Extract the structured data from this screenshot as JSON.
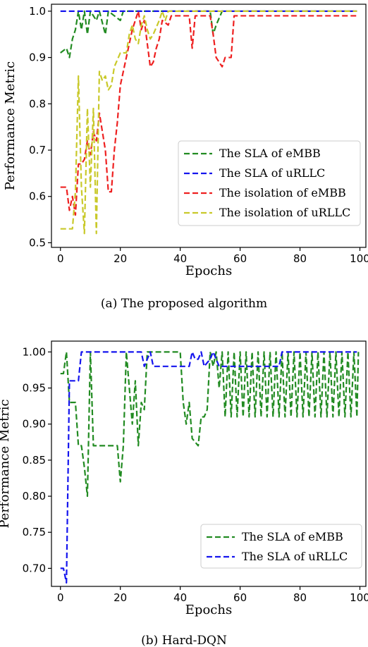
{
  "chart_data": [
    {
      "type": "line",
      "caption": "(a)  The proposed algorithm",
      "xlabel": "Epochs",
      "ylabel": "Performance Metric",
      "xlim": [
        -3,
        102
      ],
      "ylim": [
        0.49,
        1.015
      ],
      "xticks": [
        0,
        20,
        40,
        60,
        80,
        100
      ],
      "yticks": [
        0.5,
        0.6,
        0.7,
        0.8,
        0.9,
        1.0
      ],
      "ytick_labels": [
        "0.5",
        "0.6",
        "0.7",
        "0.8",
        "0.9",
        "1.0"
      ],
      "legend_position": "center-right",
      "series": [
        {
          "name": "The SLA of eMBB",
          "color": "#228B22",
          "points": [
            [
              0,
              0.91
            ],
            [
              2,
              0.92
            ],
            [
              3,
              0.9
            ],
            [
              4,
              0.94
            ],
            [
              5,
              0.96
            ],
            [
              6,
              1.0
            ],
            [
              7,
              0.96
            ],
            [
              8,
              1.0
            ],
            [
              9,
              0.95
            ],
            [
              10,
              1.0
            ],
            [
              12,
              0.98
            ],
            [
              13,
              1.0
            ],
            [
              15,
              0.95
            ],
            [
              16,
              1.0
            ],
            [
              20,
              0.98
            ],
            [
              21,
              1.0
            ],
            [
              40,
              1.0
            ],
            [
              50,
              1.0
            ],
            [
              51,
              0.95
            ],
            [
              52,
              0.97
            ],
            [
              54,
              1.0
            ],
            [
              99,
              1.0
            ]
          ]
        },
        {
          "name": "The SLA of uRLLC",
          "color": "#1515EE",
          "points": [
            [
              0,
              1.0
            ],
            [
              99,
              1.0
            ]
          ]
        },
        {
          "name": "The isolation of eMBB",
          "color": "#EE2020",
          "points": [
            [
              0,
              0.62
            ],
            [
              2,
              0.62
            ],
            [
              3,
              0.57
            ],
            [
              4,
              0.6
            ],
            [
              5,
              0.56
            ],
            [
              6,
              0.67
            ],
            [
              7,
              0.67
            ],
            [
              8,
              0.68
            ],
            [
              9,
              0.72
            ],
            [
              10,
              0.69
            ],
            [
              11,
              0.74
            ],
            [
              12,
              0.72
            ],
            [
              13,
              0.78
            ],
            [
              14,
              0.74
            ],
            [
              15,
              0.7
            ],
            [
              16,
              0.61
            ],
            [
              17,
              0.61
            ],
            [
              18,
              0.7
            ],
            [
              19,
              0.76
            ],
            [
              20,
              0.84
            ],
            [
              22,
              0.9
            ],
            [
              24,
              0.96
            ],
            [
              25,
              0.98
            ],
            [
              26,
              1.0
            ],
            [
              27,
              0.96
            ],
            [
              28,
              0.98
            ],
            [
              29,
              0.93
            ],
            [
              30,
              0.88
            ],
            [
              31,
              0.89
            ],
            [
              32,
              0.92
            ],
            [
              33,
              0.94
            ],
            [
              34,
              0.98
            ],
            [
              36,
              0.97
            ],
            [
              37,
              0.99
            ],
            [
              43,
              0.99
            ],
            [
              44,
              0.92
            ],
            [
              45,
              0.99
            ],
            [
              50,
              0.99
            ],
            [
              51,
              0.95
            ],
            [
              52,
              0.9
            ],
            [
              54,
              0.88
            ],
            [
              55,
              0.9
            ],
            [
              57,
              0.9
            ],
            [
              58,
              0.99
            ],
            [
              99,
              0.99
            ]
          ]
        },
        {
          "name": "The isolation of uRLLC",
          "color": "#C9C92A",
          "points": [
            [
              0,
              0.53
            ],
            [
              4,
              0.53
            ],
            [
              5,
              0.61
            ],
            [
              6,
              0.86
            ],
            [
              7,
              0.62
            ],
            [
              8,
              0.52
            ],
            [
              9,
              0.79
            ],
            [
              10,
              0.62
            ],
            [
              11,
              0.79
            ],
            [
              12,
              0.52
            ],
            [
              13,
              0.87
            ],
            [
              14,
              0.85
            ],
            [
              15,
              0.86
            ],
            [
              16,
              0.83
            ],
            [
              17,
              0.84
            ],
            [
              18,
              0.88
            ],
            [
              20,
              0.91
            ],
            [
              22,
              0.91
            ],
            [
              23,
              0.95
            ],
            [
              24,
              0.97
            ],
            [
              25,
              0.94
            ],
            [
              26,
              0.93
            ],
            [
              27,
              0.97
            ],
            [
              28,
              0.99
            ],
            [
              29,
              0.96
            ],
            [
              30,
              0.94
            ],
            [
              31,
              0.95
            ],
            [
              33,
              0.98
            ],
            [
              34,
              1.0
            ],
            [
              35,
              0.98
            ],
            [
              36,
              1.0
            ],
            [
              99,
              1.0
            ]
          ]
        }
      ]
    },
    {
      "type": "line",
      "caption": "(b)  Hard-DQN",
      "xlabel": "Epochs",
      "ylabel": "Performance Metric",
      "xlim": [
        -3,
        102
      ],
      "ylim": [
        0.675,
        1.015
      ],
      "xticks": [
        0,
        20,
        40,
        60,
        80,
        100
      ],
      "yticks": [
        0.7,
        0.75,
        0.8,
        0.85,
        0.9,
        0.95,
        1.0
      ],
      "ytick_labels": [
        "0.70",
        "0.75",
        "0.80",
        "0.85",
        "0.90",
        "0.95",
        "1.00"
      ],
      "legend_position": "lower-right",
      "series": [
        {
          "name": "The SLA of eMBB",
          "color": "#228B22",
          "points": [
            [
              0,
              0.97
            ],
            [
              1,
              0.97
            ],
            [
              2,
              1.0
            ],
            [
              3,
              0.93
            ],
            [
              5,
              0.93
            ],
            [
              6,
              0.87
            ],
            [
              7,
              0.87
            ],
            [
              8,
              0.84
            ],
            [
              9,
              0.8
            ],
            [
              10,
              1.0
            ],
            [
              11,
              0.87
            ],
            [
              19,
              0.87
            ],
            [
              20,
              0.82
            ],
            [
              21,
              0.87
            ],
            [
              22,
              1.0
            ],
            [
              23,
              0.95
            ],
            [
              24,
              0.9
            ],
            [
              25,
              0.96
            ],
            [
              26,
              0.87
            ],
            [
              27,
              0.93
            ],
            [
              28,
              0.92
            ],
            [
              29,
              1.0
            ],
            [
              40,
              1.0
            ],
            [
              41,
              0.93
            ],
            [
              42,
              0.9
            ],
            [
              43,
              0.93
            ],
            [
              44,
              0.88
            ],
            [
              46,
              0.87
            ],
            [
              47,
              0.91
            ],
            [
              48,
              0.91
            ],
            [
              49,
              0.92
            ],
            [
              50,
              1.0
            ],
            [
              51,
              0.98
            ],
            [
              52,
              1.0
            ],
            [
              53,
              0.95
            ],
            [
              54,
              1.0
            ],
            [
              55,
              0.91
            ],
            [
              56,
              1.0
            ],
            [
              57,
              0.91
            ],
            [
              58,
              1.0
            ],
            [
              59,
              0.91
            ],
            [
              60,
              1.0
            ],
            [
              61,
              0.91
            ],
            [
              62,
              1.0
            ],
            [
              63,
              0.91
            ],
            [
              64,
              1.0
            ],
            [
              65,
              0.91
            ],
            [
              66,
              1.0
            ],
            [
              67,
              0.91
            ],
            [
              68,
              1.0
            ],
            [
              69,
              0.91
            ],
            [
              70,
              1.0
            ],
            [
              71,
              0.91
            ],
            [
              72,
              1.0
            ],
            [
              73,
              0.91
            ],
            [
              74,
              1.0
            ],
            [
              75,
              0.91
            ],
            [
              76,
              1.0
            ],
            [
              77,
              0.91
            ],
            [
              78,
              1.0
            ],
            [
              79,
              0.91
            ],
            [
              80,
              1.0
            ],
            [
              81,
              0.91
            ],
            [
              82,
              1.0
            ],
            [
              83,
              0.91
            ],
            [
              84,
              1.0
            ],
            [
              85,
              0.91
            ],
            [
              86,
              1.0
            ],
            [
              87,
              0.91
            ],
            [
              88,
              1.0
            ],
            [
              89,
              0.91
            ],
            [
              90,
              1.0
            ],
            [
              91,
              0.91
            ],
            [
              92,
              1.0
            ],
            [
              93,
              0.91
            ],
            [
              94,
              1.0
            ],
            [
              95,
              0.91
            ],
            [
              96,
              1.0
            ],
            [
              97,
              0.91
            ],
            [
              98,
              1.0
            ],
            [
              99,
              0.91
            ],
            [
              99.5,
              1.0
            ]
          ]
        },
        {
          "name": "The SLA of uRLLC",
          "color": "#1515EE",
          "points": [
            [
              0,
              0.7
            ],
            [
              1,
              0.7
            ],
            [
              2,
              0.68
            ],
            [
              3,
              0.96
            ],
            [
              6,
              0.96
            ],
            [
              7,
              1.0
            ],
            [
              27,
              1.0
            ],
            [
              28,
              0.98
            ],
            [
              30,
              1.0
            ],
            [
              31,
              0.98
            ],
            [
              43,
              0.98
            ],
            [
              44,
              1.0
            ],
            [
              45,
              0.99
            ],
            [
              46,
              0.99
            ],
            [
              47,
              1.0
            ],
            [
              48,
              0.98
            ],
            [
              50,
              0.99
            ],
            [
              51,
              1.0
            ],
            [
              53,
              0.98
            ],
            [
              73,
              0.98
            ],
            [
              74,
              1.0
            ],
            [
              99,
              1.0
            ]
          ]
        }
      ]
    }
  ]
}
